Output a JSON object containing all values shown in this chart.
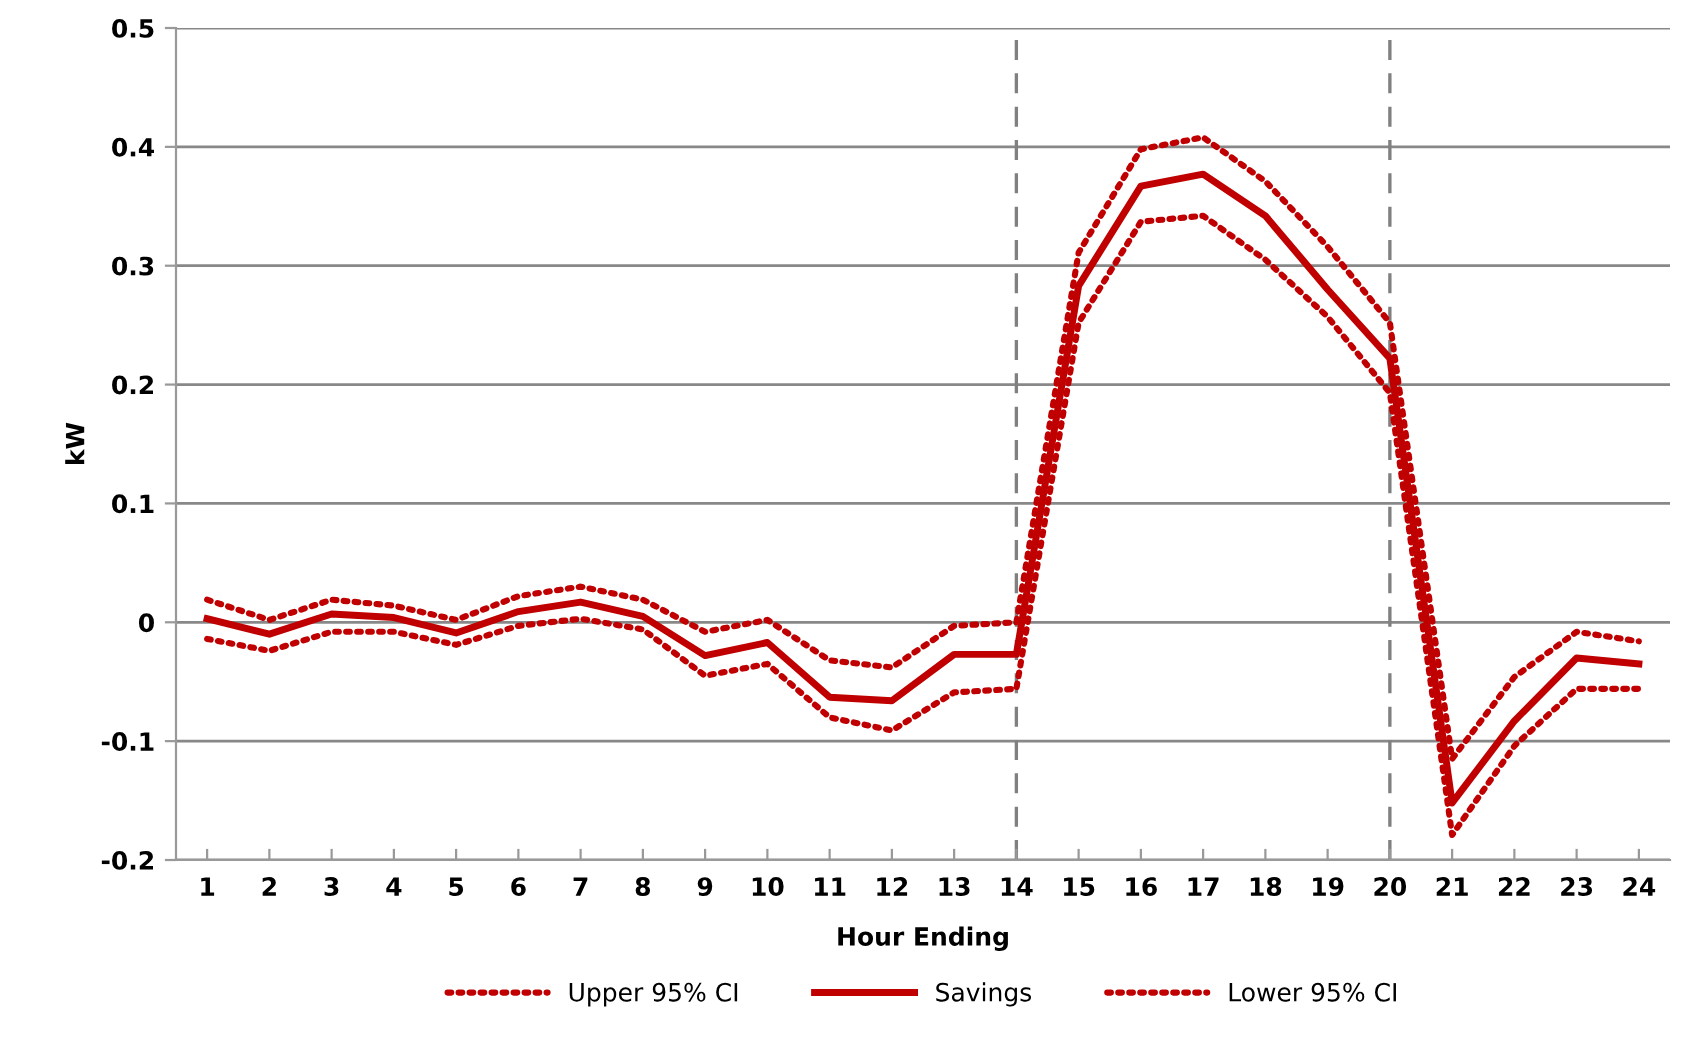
{
  "chart_data": {
    "type": "line",
    "xlabel": "Hour Ending",
    "ylabel": "kW",
    "categories": [
      "1",
      "2",
      "3",
      "4",
      "5",
      "6",
      "7",
      "8",
      "9",
      "10",
      "11",
      "12",
      "13",
      "14",
      "15",
      "16",
      "17",
      "18",
      "19",
      "20",
      "21",
      "22",
      "23",
      "24"
    ],
    "series": [
      {
        "name": "Upper 95% CI",
        "color": "#c00000",
        "line_style": "dotted",
        "values": [
          0.019,
          0.002,
          0.019,
          0.014,
          0.002,
          0.022,
          0.03,
          0.019,
          -0.008,
          0.002,
          -0.032,
          -0.038,
          -0.003,
          0.0,
          0.311,
          0.398,
          0.408,
          0.371,
          0.316,
          0.252,
          -0.115,
          -0.046,
          -0.008,
          -0.016
        ]
      },
      {
        "name": "Savings",
        "color": "#c00000",
        "line_style": "solid",
        "values": [
          0.003,
          -0.01,
          0.007,
          0.004,
          -0.009,
          0.009,
          0.017,
          0.005,
          -0.028,
          -0.017,
          -0.063,
          -0.066,
          -0.027,
          -0.027,
          0.283,
          0.367,
          0.377,
          0.342,
          0.28,
          0.222,
          -0.152,
          -0.083,
          -0.03,
          -0.035
        ]
      },
      {
        "name": "Lower 95% CI",
        "color": "#c00000",
        "line_style": "dotted",
        "values": [
          -0.014,
          -0.024,
          -0.008,
          -0.008,
          -0.019,
          -0.003,
          0.003,
          -0.006,
          -0.045,
          -0.035,
          -0.08,
          -0.091,
          -0.059,
          -0.056,
          0.252,
          0.337,
          0.342,
          0.305,
          0.257,
          0.193,
          -0.179,
          -0.104,
          -0.056,
          -0.056
        ]
      }
    ],
    "ylim": [
      -0.2,
      0.5
    ],
    "yticks": [
      -0.2,
      -0.1,
      0,
      0.1,
      0.2,
      0.3,
      0.4,
      0.5
    ],
    "grid": "y",
    "legend": "bottom",
    "marker": "none",
    "ref_lines": [
      {
        "axis": "x",
        "value": "14",
        "color": "#808080",
        "line_style": "dashed"
      },
      {
        "axis": "x",
        "value": "20",
        "color": "#808080",
        "line_style": "dashed"
      }
    ]
  }
}
